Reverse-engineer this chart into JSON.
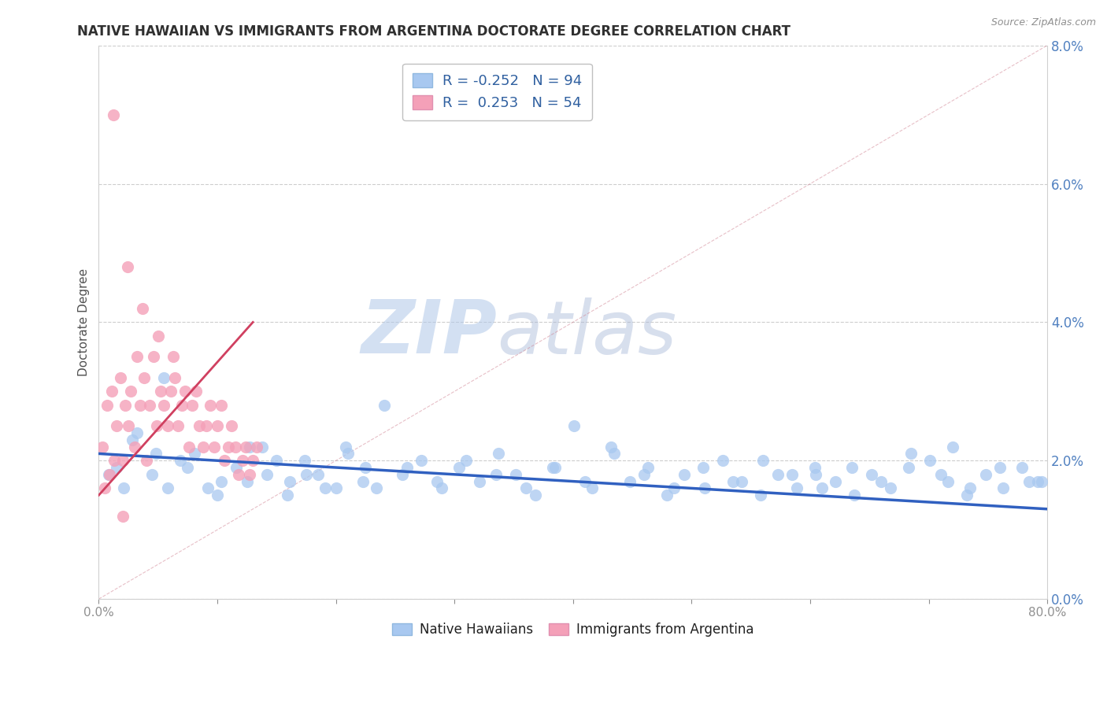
{
  "title": "NATIVE HAWAIIAN VS IMMIGRANTS FROM ARGENTINA DOCTORATE DEGREE CORRELATION CHART",
  "source_text": "Source: ZipAtlas.com",
  "ylabel": "Doctorate Degree",
  "xlim": [
    0.0,
    80.0
  ],
  "ylim": [
    0.0,
    8.0
  ],
  "ytick_vals": [
    0.0,
    2.0,
    4.0,
    6.0,
    8.0
  ],
  "color_blue": "#A8C8F0",
  "color_pink": "#F4A0B8",
  "color_blue_line": "#3060C0",
  "color_pink_line": "#D04060",
  "color_diag": "#D08090",
  "color_ytick": "#5080C0",
  "watermark_zip": "ZIP",
  "watermark_atlas": "atlas",
  "background_color": "#FFFFFF",
  "title_color": "#303030",
  "grid_color": "#C8C8C8",
  "legend_r1": "R = -0.252",
  "legend_n1": "N = 94",
  "legend_r2": "R =  0.253",
  "legend_n2": "N = 54",
  "blue_x": [
    1.5,
    3.2,
    5.8,
    8.1,
    10.3,
    12.7,
    14.2,
    15.9,
    17.4,
    19.1,
    20.8,
    22.3,
    24.1,
    25.6,
    27.2,
    28.9,
    30.4,
    32.1,
    33.7,
    35.2,
    36.8,
    38.3,
    40.1,
    41.6,
    43.2,
    44.8,
    46.3,
    47.9,
    49.4,
    51.1,
    52.6,
    54.2,
    55.8,
    57.3,
    58.9,
    60.4,
    62.1,
    63.7,
    65.2,
    66.8,
    68.3,
    70.1,
    71.6,
    73.2,
    74.8,
    76.3,
    77.9,
    79.2,
    2.8,
    4.5,
    6.9,
    9.2,
    11.6,
    13.8,
    16.1,
    18.5,
    21.0,
    23.4,
    26.0,
    28.5,
    31.0,
    33.5,
    36.0,
    38.5,
    41.0,
    43.5,
    46.0,
    48.5,
    51.0,
    53.5,
    56.0,
    58.5,
    61.0,
    63.5,
    66.0,
    68.5,
    71.0,
    73.5,
    76.0,
    78.5,
    0.8,
    2.1,
    4.8,
    7.5,
    10.0,
    12.5,
    15.0,
    17.5,
    20.0,
    22.5,
    60.5,
    72.0,
    79.5,
    5.5
  ],
  "blue_y": [
    1.9,
    2.4,
    1.6,
    2.1,
    1.7,
    2.2,
    1.8,
    1.5,
    2.0,
    1.6,
    2.2,
    1.7,
    2.8,
    1.8,
    2.0,
    1.6,
    1.9,
    1.7,
    2.1,
    1.8,
    1.5,
    1.9,
    2.5,
    1.6,
    2.2,
    1.7,
    1.9,
    1.5,
    1.8,
    1.6,
    2.0,
    1.7,
    1.5,
    1.8,
    1.6,
    1.9,
    1.7,
    1.5,
    1.8,
    1.6,
    1.9,
    2.0,
    1.7,
    1.5,
    1.8,
    1.6,
    1.9,
    1.7,
    2.3,
    1.8,
    2.0,
    1.6,
    1.9,
    2.2,
    1.7,
    1.8,
    2.1,
    1.6,
    1.9,
    1.7,
    2.0,
    1.8,
    1.6,
    1.9,
    1.7,
    2.1,
    1.8,
    1.6,
    1.9,
    1.7,
    2.0,
    1.8,
    1.6,
    1.9,
    1.7,
    2.1,
    1.8,
    1.6,
    1.9,
    1.7,
    1.8,
    1.6,
    2.1,
    1.9,
    1.5,
    1.7,
    2.0,
    1.8,
    1.6,
    1.9,
    1.8,
    2.2,
    1.7,
    3.2
  ],
  "pink_x": [
    0.3,
    0.5,
    0.7,
    0.9,
    1.1,
    1.3,
    1.5,
    1.8,
    2.0,
    2.2,
    2.5,
    2.7,
    3.0,
    3.2,
    3.5,
    3.8,
    4.0,
    4.3,
    4.6,
    4.9,
    5.2,
    5.5,
    5.8,
    6.1,
    6.4,
    6.7,
    7.0,
    7.3,
    7.6,
    7.9,
    8.2,
    8.5,
    8.8,
    9.1,
    9.4,
    9.7,
    10.0,
    10.3,
    10.6,
    10.9,
    11.2,
    11.5,
    11.8,
    12.1,
    12.4,
    12.7,
    13.0,
    13.3,
    1.2,
    2.4,
    3.7,
    5.0,
    6.3,
    2.0
  ],
  "pink_y": [
    2.2,
    1.6,
    2.8,
    1.8,
    3.0,
    2.0,
    2.5,
    3.2,
    2.0,
    2.8,
    2.5,
    3.0,
    2.2,
    3.5,
    2.8,
    3.2,
    2.0,
    2.8,
    3.5,
    2.5,
    3.0,
    2.8,
    2.5,
    3.0,
    3.2,
    2.5,
    2.8,
    3.0,
    2.2,
    2.8,
    3.0,
    2.5,
    2.2,
    2.5,
    2.8,
    2.2,
    2.5,
    2.8,
    2.0,
    2.2,
    2.5,
    2.2,
    1.8,
    2.0,
    2.2,
    1.8,
    2.0,
    2.2,
    7.0,
    4.8,
    4.2,
    3.8,
    3.5,
    1.2
  ]
}
